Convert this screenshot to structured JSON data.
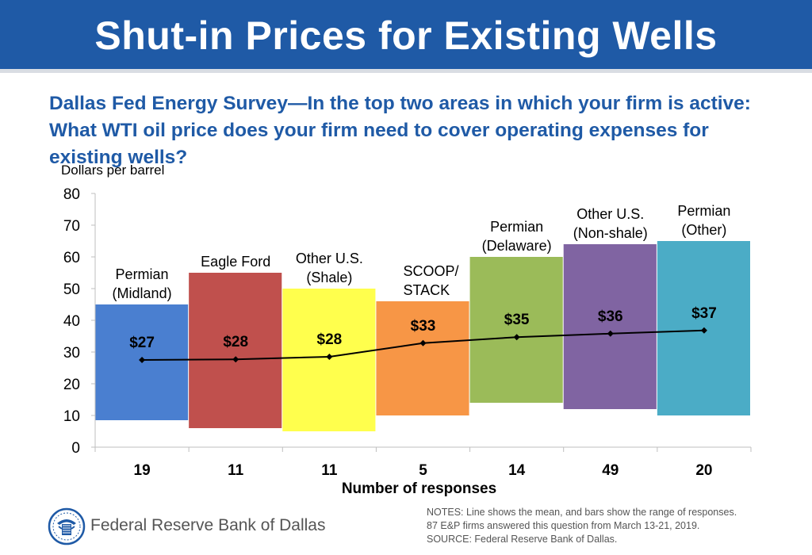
{
  "header": {
    "title": "Shut-in Prices for Existing Wells",
    "subtitle": "Dallas Fed Energy Survey—In the top two areas in which your firm is active: What WTI oil price does your firm need to cover operating expenses for existing wells?"
  },
  "chart_data": {
    "type": "bar",
    "title": "Shut-in Prices for Existing Wells",
    "ylabel": "Dollars per barrel",
    "xlabel": "Number of responses",
    "ylim": [
      0,
      80
    ],
    "yticks": [
      0,
      10,
      20,
      30,
      40,
      50,
      60,
      70,
      80
    ],
    "grid": false,
    "categories": [
      {
        "label_lines": [
          "Permian",
          "(Midland)"
        ],
        "responses": "19",
        "low": 8.5,
        "high": 45,
        "mean": 27.5,
        "mean_label": "$27",
        "color": "#4a7fd0"
      },
      {
        "label_lines": [
          "Eagle Ford"
        ],
        "responses": "11",
        "low": 6,
        "high": 55,
        "mean": 27.7,
        "mean_label": "$28",
        "color": "#c0504d"
      },
      {
        "label_lines": [
          "Other U.S.",
          "(Shale)"
        ],
        "responses": "11",
        "low": 5,
        "high": 50,
        "mean": 28.5,
        "mean_label": "$28",
        "color": "#ffff4d"
      },
      {
        "label_lines": [
          "SCOOP/",
          "STACK"
        ],
        "responses": "5",
        "low": 10,
        "high": 46,
        "mean": 32.8,
        "mean_label": "$33",
        "color": "#f79646"
      },
      {
        "label_lines": [
          "Permian",
          "(Delaware)"
        ],
        "responses": "14",
        "low": 14,
        "high": 60,
        "mean": 34.7,
        "mean_label": "$35",
        "color": "#9bbb59"
      },
      {
        "label_lines": [
          "Other U.S.",
          "(Non-shale)"
        ],
        "responses": "49",
        "low": 12,
        "high": 64,
        "mean": 35.8,
        "mean_label": "$36",
        "color": "#8064a2"
      },
      {
        "label_lines": [
          "Permian",
          "(Other)"
        ],
        "responses": "20",
        "low": 10,
        "high": 65,
        "mean": 36.8,
        "mean_label": "$37",
        "color": "#4bacc6"
      }
    ]
  },
  "footer": {
    "org_name": "Federal Reserve Bank of Dallas",
    "notes": [
      "NOTES: Line shows the mean, and bars show the range of responses.",
      "87 E&P firms answered this question from March 13-21, 2019.",
      "SOURCE: Federal Reserve Bank of Dallas."
    ]
  }
}
